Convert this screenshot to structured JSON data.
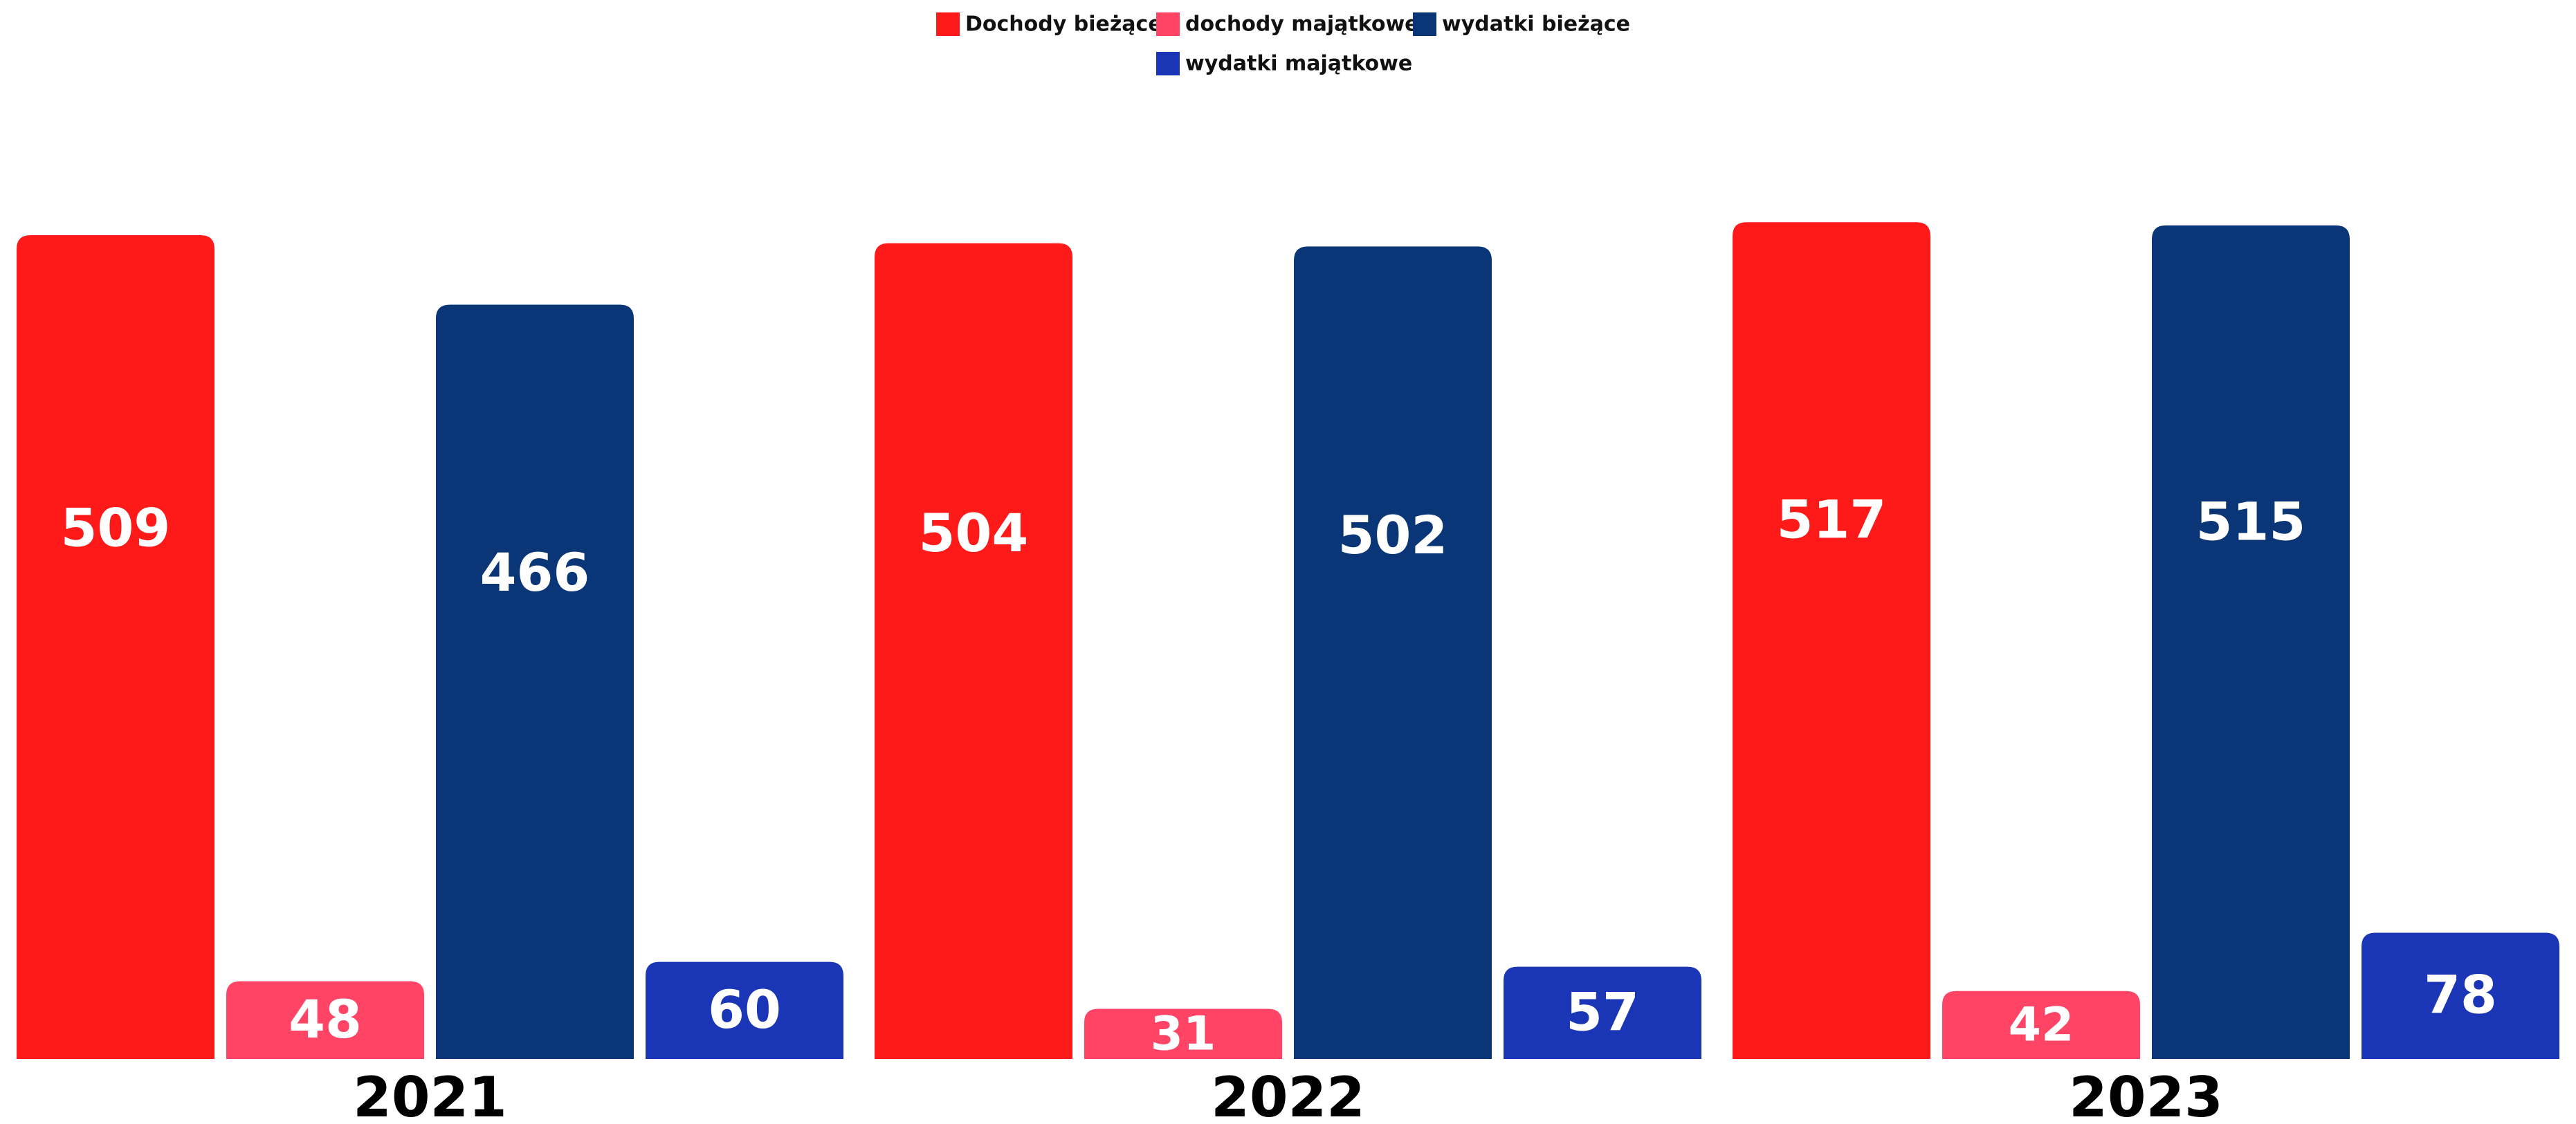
{
  "chart_data": {
    "type": "bar",
    "categories": [
      "2021",
      "2022",
      "2023"
    ],
    "series": [
      {
        "name": "Dochody bieżące",
        "color": "#ff1a1a",
        "values": [
          509,
          504,
          517
        ]
      },
      {
        "name": "dochody majątkowe",
        "color": "#ff4466",
        "values": [
          48,
          31,
          42
        ]
      },
      {
        "name": "wydatki bieżące",
        "color": "#0a3577",
        "values": [
          466,
          502,
          515
        ]
      },
      {
        "name": "wydatki majątkowe",
        "color": "#1a35b5",
        "values": [
          60,
          57,
          78
        ]
      }
    ]
  }
}
